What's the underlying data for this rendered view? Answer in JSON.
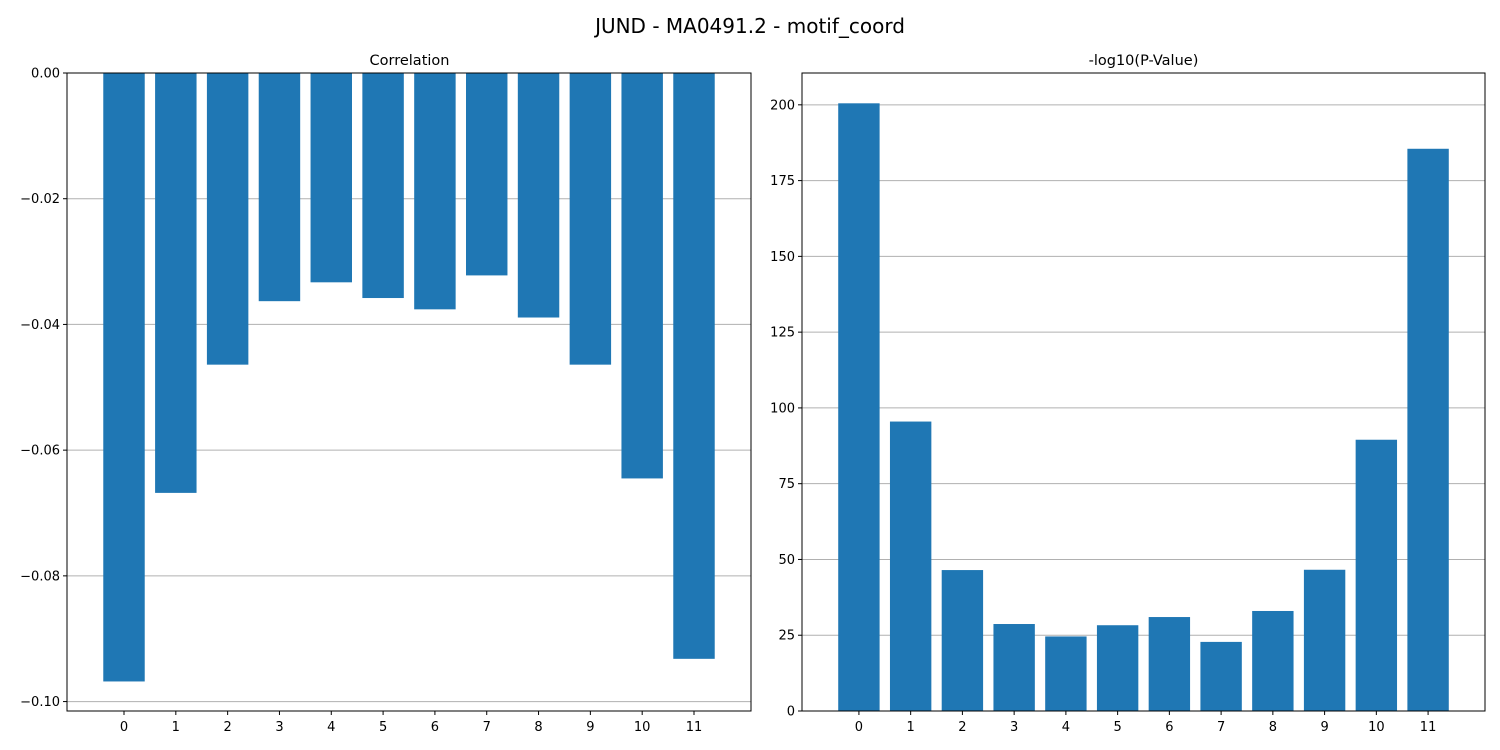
{
  "figure": {
    "title": "JUND - MA0491.2 - motif_coord"
  },
  "chart_data": [
    {
      "type": "bar",
      "title": "Correlation",
      "categories": [
        "0",
        "1",
        "2",
        "3",
        "4",
        "5",
        "6",
        "7",
        "8",
        "9",
        "10",
        "11"
      ],
      "values": [
        -0.0968,
        -0.0668,
        -0.0464,
        -0.0363,
        -0.0333,
        -0.0358,
        -0.0376,
        -0.0322,
        -0.0389,
        -0.0464,
        -0.0645,
        -0.0932
      ],
      "ylim": [
        -0.1015,
        0.0
      ],
      "yticks": [
        0.0,
        -0.02,
        -0.04,
        -0.06,
        -0.08,
        -0.1
      ],
      "ytick_labels": [
        "0.00",
        "−0.02",
        "−0.04",
        "−0.06",
        "−0.08",
        "−0.10"
      ],
      "grid": "y",
      "color": "#1f77b4"
    },
    {
      "type": "bar",
      "title": "-log10(P-Value)",
      "categories": [
        "0",
        "1",
        "2",
        "3",
        "4",
        "5",
        "6",
        "7",
        "8",
        "9",
        "10",
        "11"
      ],
      "values": [
        200.5,
        95.5,
        46.5,
        28.7,
        24.6,
        28.3,
        31.0,
        22.8,
        33.0,
        46.6,
        89.5,
        185.5
      ],
      "ylim": [
        0,
        210.5
      ],
      "yticks": [
        0,
        25,
        50,
        75,
        100,
        125,
        150,
        175,
        200
      ],
      "ytick_labels": [
        "0",
        "25",
        "50",
        "75",
        "100",
        "125",
        "150",
        "175",
        "200"
      ],
      "grid": "y",
      "color": "#1f77b4"
    }
  ]
}
